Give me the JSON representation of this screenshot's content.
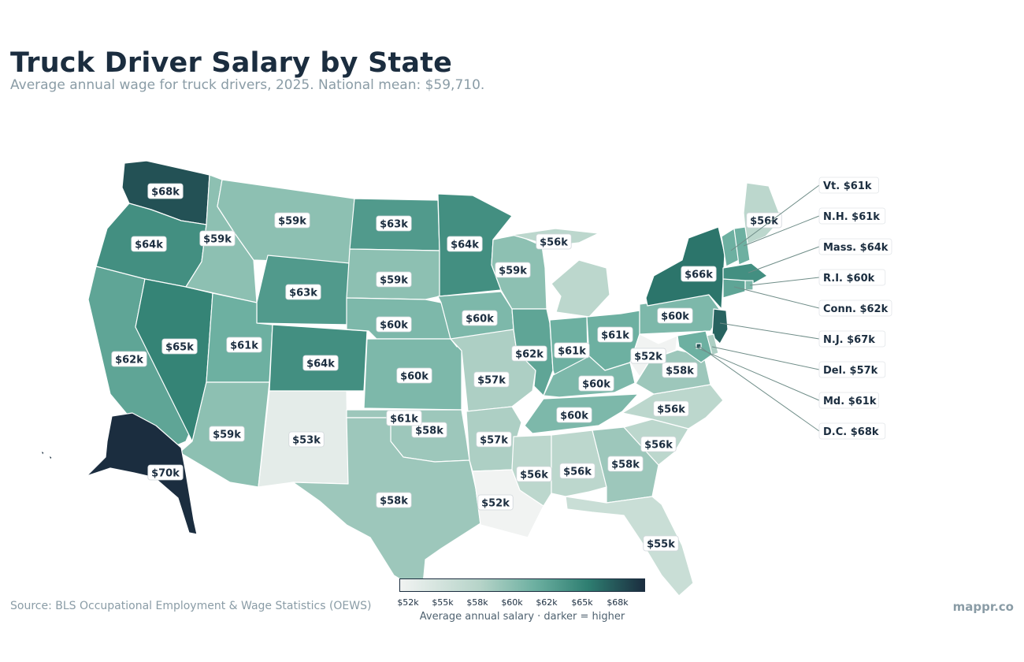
{
  "header": {
    "title": "Truck Driver Salary by State",
    "subtitle": "Average annual wage for truck drivers, 2025. National mean: $59,710."
  },
  "footer": {
    "source": "Source: BLS Occupational Employment & Wage Statistics (OEWS)",
    "brand": "mappr.co"
  },
  "legend": {
    "ticks": [
      "$52k",
      "$55k",
      "$58k",
      "$60k",
      "$62k",
      "$65k",
      "$68k"
    ],
    "caption": "Average annual salary  ·  darker = higher",
    "colors": [
      "#f1f3f2",
      "#b5d3c8",
      "#6db0a1",
      "#2e7e71",
      "#1b2d3f"
    ]
  },
  "map_data": {
    "type": "choropleth",
    "states": [
      {
        "state": "WA",
        "value": 68,
        "label": "$68k"
      },
      {
        "state": "OR",
        "value": 64,
        "label": "$64k"
      },
      {
        "state": "CA",
        "value": 62,
        "label": "$62k"
      },
      {
        "state": "NV",
        "value": 65,
        "label": "$65k"
      },
      {
        "state": "ID",
        "value": 59,
        "label": "$59k"
      },
      {
        "state": "MT",
        "value": 59,
        "label": "$59k"
      },
      {
        "state": "WY",
        "value": 63,
        "label": "$63k"
      },
      {
        "state": "UT",
        "value": 61,
        "label": "$61k"
      },
      {
        "state": "AZ",
        "value": 59,
        "label": "$59k"
      },
      {
        "state": "NM",
        "value": 53,
        "label": "$53k"
      },
      {
        "state": "CO",
        "value": 64,
        "label": "$64k"
      },
      {
        "state": "ND",
        "value": 63,
        "label": "$63k"
      },
      {
        "state": "SD",
        "value": 59,
        "label": "$59k"
      },
      {
        "state": "NE",
        "value": 60,
        "label": "$60k"
      },
      {
        "state": "KS",
        "value": 60,
        "label": "$60k"
      },
      {
        "state": "OK",
        "value": 58,
        "label": "$58k"
      },
      {
        "state": "OK-panhandle",
        "value": 61,
        "label": "$61k"
      },
      {
        "state": "TX",
        "value": 58,
        "label": "$58k"
      },
      {
        "state": "MN",
        "value": 64,
        "label": "$64k"
      },
      {
        "state": "IA",
        "value": 60,
        "label": "$60k"
      },
      {
        "state": "MO",
        "value": 57,
        "label": "$57k"
      },
      {
        "state": "AR",
        "value": 57,
        "label": "$57k"
      },
      {
        "state": "LA",
        "value": 52,
        "label": "$52k"
      },
      {
        "state": "WI",
        "value": 59,
        "label": "$59k"
      },
      {
        "state": "MI",
        "value": 56,
        "label": "$56k"
      },
      {
        "state": "IL",
        "value": 62,
        "label": "$62k"
      },
      {
        "state": "IN",
        "value": 61,
        "label": "$61k"
      },
      {
        "state": "OH",
        "value": 61,
        "label": "$61k"
      },
      {
        "state": "KY",
        "value": 60,
        "label": "$60k"
      },
      {
        "state": "TN",
        "value": 60,
        "label": "$60k"
      },
      {
        "state": "MS",
        "value": 56,
        "label": "$56k"
      },
      {
        "state": "AL",
        "value": 56,
        "label": "$56k"
      },
      {
        "state": "GA",
        "value": 58,
        "label": "$58k"
      },
      {
        "state": "FL",
        "value": 55,
        "label": "$55k"
      },
      {
        "state": "SC",
        "value": 56,
        "label": "$56k"
      },
      {
        "state": "NC",
        "value": 56,
        "label": "$56k"
      },
      {
        "state": "VA",
        "value": 58,
        "label": "$58k"
      },
      {
        "state": "WV",
        "value": 52,
        "label": "$52k"
      },
      {
        "state": "PA",
        "value": 60,
        "label": "$60k"
      },
      {
        "state": "NY",
        "value": 66,
        "label": "$66k"
      },
      {
        "state": "ME",
        "value": 56,
        "label": "$56k"
      },
      {
        "state": "AK",
        "value": 70,
        "label": "$70k"
      },
      {
        "state": "HI",
        "value": 70,
        "label": ""
      }
    ],
    "callouts": [
      {
        "state": "VT",
        "value": 61,
        "label": "Vt. $61k"
      },
      {
        "state": "NH",
        "value": 61,
        "label": "N.H. $61k"
      },
      {
        "state": "MA",
        "value": 64,
        "label": "Mass. $64k"
      },
      {
        "state": "RI",
        "value": 60,
        "label": "R.I. $60k"
      },
      {
        "state": "CT",
        "value": 62,
        "label": "Conn. $62k"
      },
      {
        "state": "NJ",
        "value": 67,
        "label": "N.J. $67k"
      },
      {
        "state": "DE",
        "value": 57,
        "label": "Del. $57k"
      },
      {
        "state": "MD",
        "value": 61,
        "label": "Md. $61k"
      },
      {
        "state": "DC",
        "value": 68,
        "label": "D.C. $68k"
      }
    ],
    "legend_title": "Average annual salary",
    "color_scale": {
      "min": 52,
      "max": 70
    }
  }
}
